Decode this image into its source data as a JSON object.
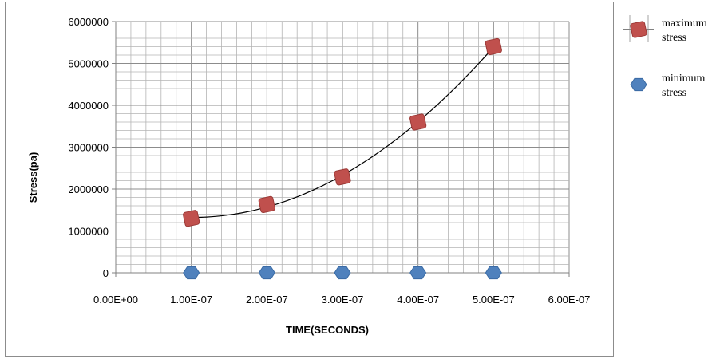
{
  "chart_data": {
    "type": "scatter",
    "title": "",
    "xlabel": "TIME(SECONDS)",
    "ylabel": "Stress(pa)",
    "xlim": [
      0,
      6e-07
    ],
    "ylim": [
      0,
      6000000
    ],
    "x_ticks": [
      "0.00E+00",
      "1.00E-07",
      "2.00E-07",
      "3.00E-07",
      "4.00E-07",
      "5.00E-07",
      "6.00E-07"
    ],
    "y_ticks": [
      "0",
      "1000000",
      "2000000",
      "3000000",
      "4000000",
      "5000000",
      "6000000"
    ],
    "grid": true,
    "legend_position": "right",
    "series": [
      {
        "name": "maximum stress",
        "legend_lines": [
          "maximum",
          "stress"
        ],
        "marker": "square",
        "color": "#c0504d",
        "x": [
          1e-07,
          2e-07,
          3e-07,
          4e-07,
          5e-07
        ],
        "y": [
          1300000,
          1630000,
          2290000,
          3600000,
          5400000
        ],
        "trendline": true
      },
      {
        "name": "minimum stress",
        "legend_lines": [
          "minimum",
          "stress"
        ],
        "marker": "hexagon",
        "color": "#4f81bd",
        "x": [
          1e-07,
          2e-07,
          3e-07,
          4e-07,
          5e-07
        ],
        "y": [
          0,
          0,
          0,
          0,
          0
        ]
      }
    ]
  }
}
